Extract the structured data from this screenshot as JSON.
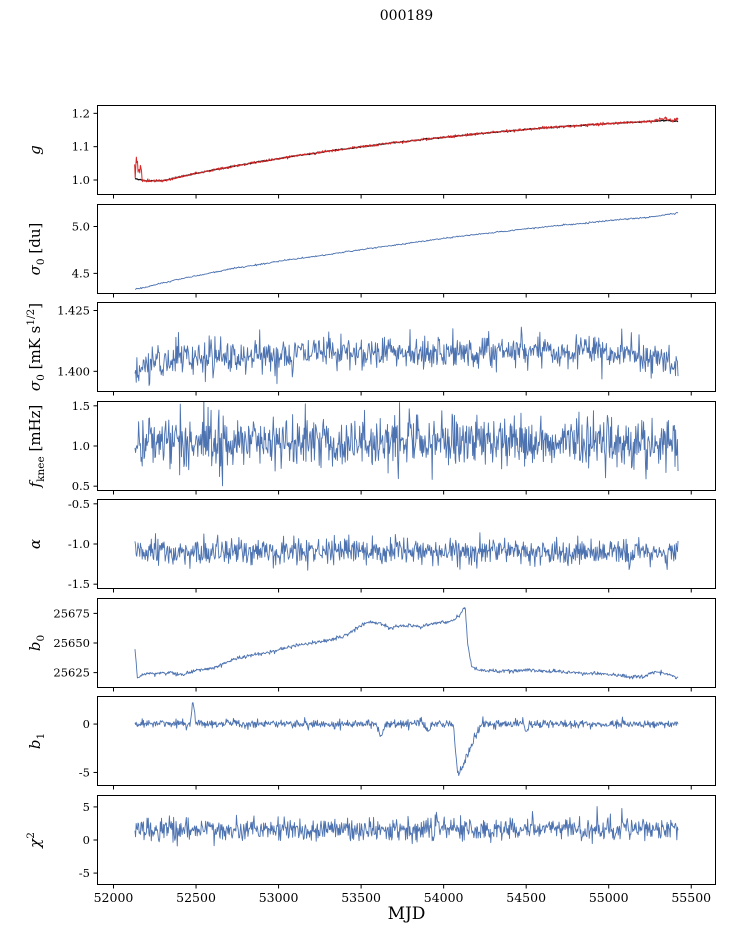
{
  "title": "000189",
  "xlabel": "MJD",
  "chart_data": {
    "type": "line",
    "title": "000189",
    "xlabel": "MJD",
    "xlim": [
      51900,
      55650
    ],
    "xticks": [
      52000,
      52500,
      53000,
      53500,
      54000,
      54500,
      55000,
      55500
    ],
    "xtick_labels": [
      "52000",
      "52500",
      "53000",
      "53500",
      "54000",
      "54500",
      "55000",
      "55500"
    ],
    "grid": false,
    "legend": "none",
    "colors": {
      "line": "#4c72b0",
      "model": "#111111",
      "data_red": "#d62728"
    },
    "panels": [
      {
        "id": "g",
        "ylabel": "g",
        "ylabel_segments": [
          {
            "t": "g",
            "s": "it"
          }
        ],
        "ylim": [
          0.955,
          1.225
        ],
        "yticks": [
          1.0,
          1.1,
          1.2
        ],
        "ytick_labels": [
          "1.0",
          "1.1",
          "1.2"
        ],
        "series": [
          {
            "name": "gain-model",
            "color": "#111111",
            "width": 1.3,
            "n": 500,
            "x0": 52130,
            "x1": 55420,
            "seed": 11,
            "noise": 0.0008,
            "trend": [
              [
                52130,
                1.005
              ],
              [
                52200,
                0.997
              ],
              [
                52300,
                0.998
              ],
              [
                52500,
                1.02
              ],
              [
                52800,
                1.048
              ],
              [
                53100,
                1.072
              ],
              [
                53400,
                1.093
              ],
              [
                53700,
                1.112
              ],
              [
                54000,
                1.128
              ],
              [
                54300,
                1.143
              ],
              [
                54600,
                1.156
              ],
              [
                54900,
                1.166
              ],
              [
                55100,
                1.172
              ],
              [
                55250,
                1.176
              ],
              [
                55350,
                1.179
              ],
              [
                55420,
                1.176
              ]
            ],
            "events": []
          },
          {
            "name": "gain-data",
            "color": "#d62728",
            "width": 1.0,
            "n": 950,
            "x0": 52128,
            "x1": 55420,
            "seed": 12,
            "noise": 0.0018,
            "trend": [
              [
                52130,
                1.005
              ],
              [
                52200,
                0.997
              ],
              [
                52300,
                0.998
              ],
              [
                52500,
                1.02
              ],
              [
                52800,
                1.048
              ],
              [
                53100,
                1.072
              ],
              [
                53400,
                1.093
              ],
              [
                53700,
                1.112
              ],
              [
                54000,
                1.128
              ],
              [
                54300,
                1.143
              ],
              [
                54600,
                1.156
              ],
              [
                54900,
                1.166
              ],
              [
                55100,
                1.172
              ],
              [
                55250,
                1.176
              ],
              [
                55350,
                1.179
              ],
              [
                55420,
                1.176
              ]
            ],
            "events": [
              {
                "x0": 52128,
                "x1": 52172,
                "amp": 0.068,
                "mode": "burst"
              },
              {
                "x0": 55280,
                "x1": 55420,
                "amp": 0.008,
                "mode": "burst"
              }
            ]
          }
        ]
      },
      {
        "id": "sigma0-du",
        "ylabel": "sigma0 [du]",
        "ylabel_segments": [
          {
            "t": "σ",
            "s": "it"
          },
          {
            "t": "0",
            "s": "sub"
          },
          {
            "t": " [du]",
            "s": "up"
          }
        ],
        "ylim": [
          4.28,
          5.24
        ],
        "yticks": [
          4.5,
          5.0
        ],
        "ytick_labels": [
          "4.5",
          "5.0"
        ],
        "series": [
          {
            "name": "sigma0-du",
            "color": "#4c72b0",
            "width": 0.9,
            "n": 650,
            "x0": 52130,
            "x1": 55420,
            "seed": 21,
            "noise": 0.004,
            "trend": [
              [
                52130,
                4.335
              ],
              [
                52160,
                4.34
              ],
              [
                52250,
                4.375
              ],
              [
                52400,
                4.44
              ],
              [
                52550,
                4.49
              ],
              [
                52700,
                4.545
              ],
              [
                52900,
                4.6
              ],
              [
                53100,
                4.655
              ],
              [
                53300,
                4.7
              ],
              [
                53500,
                4.755
              ],
              [
                53700,
                4.8
              ],
              [
                53900,
                4.85
              ],
              [
                54100,
                4.895
              ],
              [
                54300,
                4.935
              ],
              [
                54500,
                4.975
              ],
              [
                54700,
                5.01
              ],
              [
                54900,
                5.045
              ],
              [
                55100,
                5.08
              ],
              [
                55250,
                5.1
              ],
              [
                55420,
                5.145
              ]
            ],
            "events": []
          }
        ]
      },
      {
        "id": "sigma0-mks",
        "ylabel": "sigma0 [mK s^1/2]",
        "ylabel_segments": [
          {
            "t": "σ",
            "s": "it"
          },
          {
            "t": "0",
            "s": "sub"
          },
          {
            "t": " [mK s",
            "s": "up"
          },
          {
            "t": "1/2",
            "s": "sup"
          },
          {
            "t": "]",
            "s": "up"
          }
        ],
        "ylim": [
          1.3915,
          1.4285
        ],
        "yticks": [
          1.4,
          1.425
        ],
        "ytick_labels": [
          "1.400",
          "1.425"
        ],
        "series": [
          {
            "name": "sigma0-mks",
            "color": "#4c72b0",
            "width": 0.9,
            "n": 850,
            "x0": 52130,
            "x1": 55420,
            "seed": 31,
            "noise": 0.0035,
            "trend": [
              [
                52130,
                1.3975
              ],
              [
                52200,
                1.403
              ],
              [
                52400,
                1.406
              ],
              [
                52700,
                1.4055
              ],
              [
                53000,
                1.4065
              ],
              [
                53300,
                1.408
              ],
              [
                53600,
                1.4085
              ],
              [
                53900,
                1.408
              ],
              [
                54200,
                1.4075
              ],
              [
                54500,
                1.409
              ],
              [
                54800,
                1.4085
              ],
              [
                55100,
                1.4075
              ],
              [
                55250,
                1.406
              ],
              [
                55420,
                1.403
              ]
            ],
            "events": []
          }
        ]
      },
      {
        "id": "fknee",
        "ylabel": "f_knee [mHz]",
        "ylabel_segments": [
          {
            "t": "f",
            "s": "it"
          },
          {
            "t": "knee",
            "s": "sub"
          },
          {
            "t": " [mHz]",
            "s": "up"
          }
        ],
        "ylim": [
          0.44,
          1.56
        ],
        "yticks": [
          0.5,
          1.0,
          1.5
        ],
        "ytick_labels": [
          "0.5",
          "1.0",
          "1.5"
        ],
        "series": [
          {
            "name": "fknee",
            "color": "#4c72b0",
            "width": 0.9,
            "n": 900,
            "x0": 52130,
            "x1": 55420,
            "seed": 41,
            "noise": 0.165,
            "trend": [
              [
                52130,
                1.07
              ],
              [
                53000,
                1.05
              ],
              [
                54000,
                1.06
              ],
              [
                55420,
                1.05
              ]
            ],
            "events": []
          }
        ]
      },
      {
        "id": "alpha",
        "ylabel": "alpha",
        "ylabel_segments": [
          {
            "t": "α",
            "s": "it"
          }
        ],
        "ylim": [
          -1.56,
          -0.44
        ],
        "yticks": [
          -1.5,
          -1.0,
          -0.5
        ],
        "ytick_labels": [
          "-1.5",
          "-1.0",
          "-0.5"
        ],
        "series": [
          {
            "name": "alpha",
            "color": "#4c72b0",
            "width": 0.9,
            "n": 900,
            "x0": 52130,
            "x1": 55420,
            "seed": 51,
            "noise": 0.082,
            "trend": [
              [
                52130,
                -1.11
              ],
              [
                53500,
                -1.1
              ],
              [
                55420,
                -1.1
              ]
            ],
            "events": []
          }
        ]
      },
      {
        "id": "b0",
        "ylabel": "b0",
        "ylabel_segments": [
          {
            "t": "b",
            "s": "it"
          },
          {
            "t": "0",
            "s": "sub"
          }
        ],
        "ylim": [
          25612,
          25688
        ],
        "yticks": [
          25625,
          25650,
          25675
        ],
        "ytick_labels": [
          "25625",
          "25650",
          "25675"
        ],
        "series": [
          {
            "name": "b0",
            "color": "#4c72b0",
            "width": 0.9,
            "n": 900,
            "x0": 52130,
            "x1": 55420,
            "seed": 61,
            "noise": 0.8,
            "trend": [
              [
                52130,
                25645
              ],
              [
                52145,
                25621
              ],
              [
                52200,
                25624
              ],
              [
                52350,
                25625
              ],
              [
                52420,
                25623
              ],
              [
                52500,
                25627
              ],
              [
                52600,
                25629
              ],
              [
                52750,
                25637
              ],
              [
                52850,
                25640
              ],
              [
                52950,
                25642
              ],
              [
                53050,
                25646
              ],
              [
                53200,
                25650
              ],
              [
                53300,
                25652
              ],
              [
                53400,
                25656
              ],
              [
                53480,
                25663
              ],
              [
                53550,
                25668
              ],
              [
                53620,
                25667
              ],
              [
                53680,
                25662
              ],
              [
                53720,
                25664
              ],
              [
                53800,
                25665
              ],
              [
                53850,
                25663
              ],
              [
                53950,
                25667
              ],
              [
                54000,
                25667
              ],
              [
                54060,
                25669
              ],
              [
                54100,
                25674
              ],
              [
                54130,
                25681
              ],
              [
                54145,
                25650
              ],
              [
                54170,
                25630
              ],
              [
                54220,
                25627
              ],
              [
                54350,
                25626
              ],
              [
                54500,
                25627
              ],
              [
                54650,
                25626
              ],
              [
                54800,
                25625
              ],
              [
                54950,
                25624
              ],
              [
                55100,
                25622
              ],
              [
                55200,
                25621
              ],
              [
                55280,
                25626
              ],
              [
                55340,
                25624
              ],
              [
                55420,
                25621
              ]
            ],
            "events": []
          }
        ]
      },
      {
        "id": "b1",
        "ylabel": "b1",
        "ylabel_segments": [
          {
            "t": "b",
            "s": "it"
          },
          {
            "t": "1",
            "s": "sub"
          }
        ],
        "ylim": [
          -6.4,
          2.9
        ],
        "yticks": [
          -5,
          0
        ],
        "ytick_labels": [
          "-5",
          "0"
        ],
        "series": [
          {
            "name": "b1",
            "color": "#4c72b0",
            "width": 0.9,
            "n": 900,
            "x0": 52130,
            "x1": 55420,
            "seed": 71,
            "noise": 0.22,
            "trend": [
              [
                52130,
                0.05
              ],
              [
                55420,
                0.0
              ]
            ],
            "events": [
              {
                "x0": 52465,
                "x1": 52500,
                "amp": 2.3,
                "peak": 0.4,
                "mode": "tri"
              },
              {
                "x0": 53590,
                "x1": 53650,
                "amp": -1.3,
                "peak": 0.5,
                "mode": "tri"
              },
              {
                "x0": 53880,
                "x1": 53930,
                "amp": -0.9,
                "peak": 0.5,
                "mode": "tri"
              },
              {
                "x0": 54060,
                "x1": 54230,
                "amp": -5.4,
                "peak": 0.15,
                "mode": "tri"
              },
              {
                "x0": 54480,
                "x1": 54520,
                "amp": -0.8,
                "peak": 0.5,
                "mode": "tri"
              }
            ]
          }
        ]
      },
      {
        "id": "chi2",
        "ylabel": "chi^2",
        "ylabel_segments": [
          {
            "t": "χ",
            "s": "it"
          },
          {
            "t": "2",
            "s": "sup"
          }
        ],
        "ylim": [
          -6.8,
          6.8
        ],
        "yticks": [
          -5,
          0,
          5
        ],
        "ytick_labels": [
          "-5",
          "0",
          "5"
        ],
        "series": [
          {
            "name": "chi2",
            "color": "#4c72b0",
            "width": 0.9,
            "n": 900,
            "x0": 52130,
            "x1": 55420,
            "seed": 81,
            "noise": 0.85,
            "trend": [
              [
                52130,
                1.6
              ],
              [
                55420,
                1.7
              ]
            ],
            "events": []
          }
        ]
      }
    ]
  }
}
